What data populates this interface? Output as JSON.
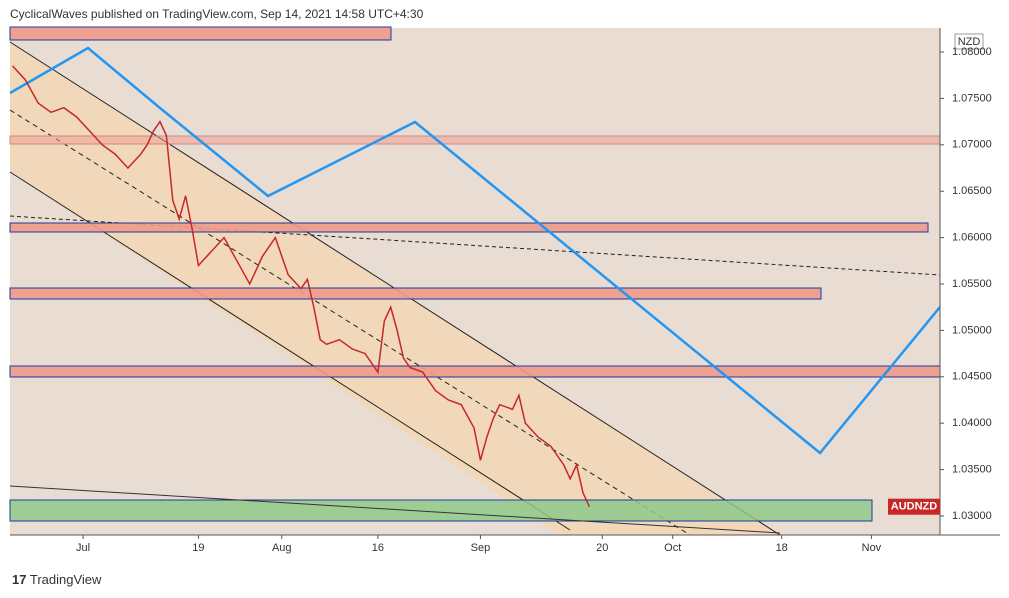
{
  "header": {
    "text": "CyclicalWaves published on TradingView.com, Sep 14, 2021 14:58 UTC+4:30"
  },
  "footer": {
    "text": "TradingView"
  },
  "chart_data": {
    "type": "line",
    "currency": "NZD",
    "x": [
      -11,
      -9,
      -7,
      -5,
      -3,
      -1,
      1,
      3,
      5,
      7,
      9,
      10,
      11,
      12,
      13,
      14,
      15,
      16,
      17,
      18,
      20,
      22,
      24,
      26,
      28,
      30,
      32,
      34,
      35,
      36,
      37,
      38,
      40,
      42,
      44,
      46,
      47,
      48,
      49,
      50,
      51,
      53,
      55,
      57,
      59,
      61,
      62,
      63,
      64,
      65,
      67,
      68,
      69,
      71,
      73,
      75,
      76,
      77,
      78,
      79
    ],
    "series": [
      {
        "name": "AUDNZD",
        "color": "#c62828",
        "values": [
          1.0785,
          1.077,
          1.0745,
          1.0735,
          1.074,
          1.073,
          1.0715,
          1.07,
          1.069,
          1.0675,
          1.069,
          1.07,
          1.0715,
          1.0725,
          1.071,
          1.064,
          1.062,
          1.0645,
          1.061,
          1.057,
          1.0585,
          1.06,
          1.0575,
          1.055,
          1.058,
          1.06,
          1.056,
          1.0545,
          1.0555,
          1.0525,
          1.049,
          1.0485,
          1.049,
          1.048,
          1.0475,
          1.0455,
          1.051,
          1.0525,
          1.05,
          1.047,
          1.046,
          1.0455,
          1.0435,
          1.0425,
          1.042,
          1.0395,
          1.036,
          1.0385,
          1.0405,
          1.042,
          1.0415,
          1.043,
          1.04,
          1.0385,
          1.0375,
          1.0355,
          1.034,
          1.0355,
          1.0325,
          1.031
        ]
      }
    ],
    "xlim": [
      -11.4,
      133.7
    ],
    "xticks": [
      {
        "value": 0,
        "label": "Jul"
      },
      {
        "value": 18,
        "label": "19"
      },
      {
        "value": 31,
        "label": "Aug"
      },
      {
        "value": 46,
        "label": "16"
      },
      {
        "value": 62,
        "label": "Sep"
      },
      {
        "value": 81,
        "label": "20"
      },
      {
        "value": 92,
        "label": "Oct"
      },
      {
        "value": 109,
        "label": "18"
      },
      {
        "value": 123,
        "label": "Nov"
      }
    ],
    "ylim": [
      1.02795,
      1.08259
    ],
    "yticks": [
      {
        "value": 1.03,
        "label": "1.03000"
      },
      {
        "value": 1.035,
        "label": "1.03500"
      },
      {
        "value": 1.04,
        "label": "1.04000"
      },
      {
        "value": 1.045,
        "label": "1.04500"
      },
      {
        "value": 1.05,
        "label": "1.05000"
      },
      {
        "value": 1.055,
        "label": "1.05500"
      },
      {
        "value": 1.06,
        "label": "1.06000"
      },
      {
        "value": 1.065,
        "label": "1.06500"
      },
      {
        "value": 1.07,
        "label": "1.07000"
      },
      {
        "value": 1.075,
        "label": "1.07500"
      },
      {
        "value": 1.08,
        "label": "1.08000"
      }
    ]
  }
}
